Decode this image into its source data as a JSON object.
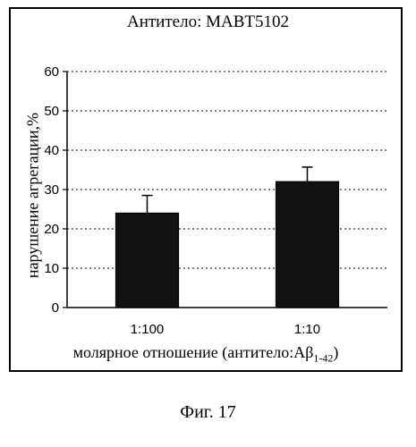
{
  "chart_data": {
    "type": "bar",
    "title": "Антитело: MABT5102",
    "ylabel": "нарушение агрегации,%",
    "xlabel_prefix": "молярное отношение (антитело:Aβ",
    "xlabel_sub": "1-42",
    "xlabel_suffix": ")",
    "categories": [
      "1:100",
      "1:10"
    ],
    "values": [
      24,
      32
    ],
    "errors": [
      4.5,
      3.7
    ],
    "ylim": [
      0,
      60
    ],
    "yticks": [
      0,
      10,
      20,
      30,
      40,
      50,
      60
    ],
    "grid": true,
    "bar_color": "#111111"
  },
  "caption": "Фиг. 17"
}
